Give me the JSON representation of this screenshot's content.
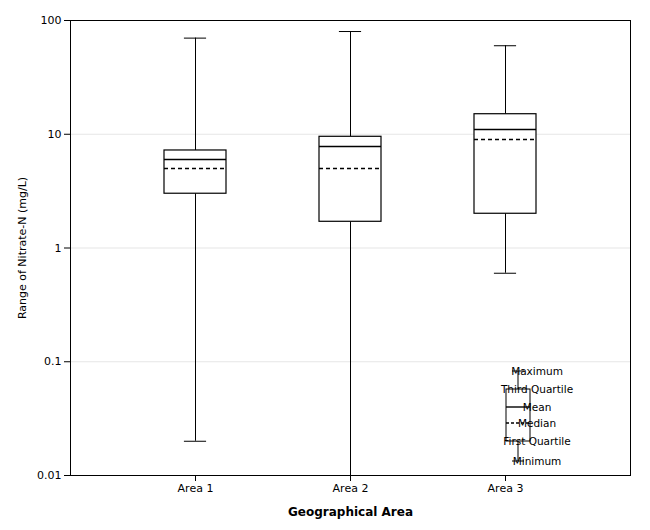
{
  "chart_data": {
    "type": "box",
    "xlabel": "Geographical Area",
    "ylabel": "Range of Nitrate-N (mg/L)",
    "categories": [
      "Area 1",
      "Area 2",
      "Area 3"
    ],
    "min": [
      0.02,
      0.01,
      0.6
    ],
    "q1": [
      3.0,
      1.7,
      2.0
    ],
    "median": [
      5.0,
      5.0,
      9.0
    ],
    "mean": [
      6.0,
      7.8,
      11.0
    ],
    "q3": [
      7.2,
      9.5,
      15.0
    ],
    "max": [
      70.0,
      80.0,
      60.0
    ],
    "log": "y",
    "ylim": [
      0.01,
      100
    ],
    "yticks": [
      0.01,
      0.1,
      1,
      10,
      100
    ],
    "grid": true,
    "color": "#000000",
    "legend": "lower right",
    "annotations": [
      "Maximum",
      "Third Quartile",
      "Mean",
      "Median",
      "First Quartile",
      "Minimum"
    ]
  }
}
